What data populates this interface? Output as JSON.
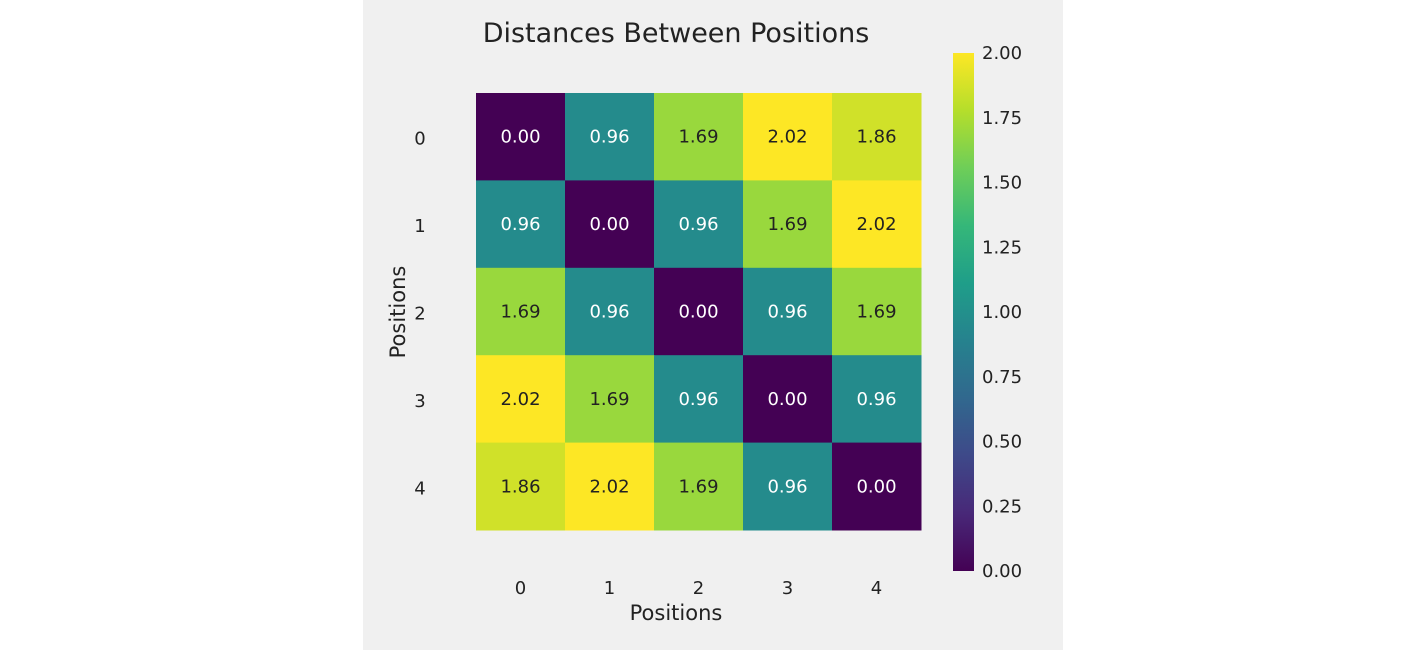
{
  "chart_data": {
    "type": "heatmap",
    "title": "Distances Between Positions",
    "xlabel": "Positions",
    "ylabel": "Positions",
    "x_categories": [
      "0",
      "1",
      "2",
      "3",
      "4"
    ],
    "y_categories": [
      "0",
      "1",
      "2",
      "3",
      "4"
    ],
    "values": [
      [
        0.0,
        0.96,
        1.69,
        2.02,
        1.86
      ],
      [
        0.96,
        0.0,
        0.96,
        1.69,
        2.02
      ],
      [
        1.69,
        0.96,
        0.0,
        0.96,
        1.69
      ],
      [
        2.02,
        1.69,
        0.96,
        0.0,
        0.96
      ],
      [
        1.86,
        2.02,
        1.69,
        0.96,
        0.0
      ]
    ],
    "colormap": "viridis",
    "color_range": [
      0.0,
      2.0
    ],
    "colorbar_ticks": [
      "0.00",
      "0.25",
      "0.50",
      "0.75",
      "1.00",
      "1.25",
      "1.50",
      "1.75",
      "2.00"
    ],
    "grid": false,
    "colorbar_position": "right"
  }
}
